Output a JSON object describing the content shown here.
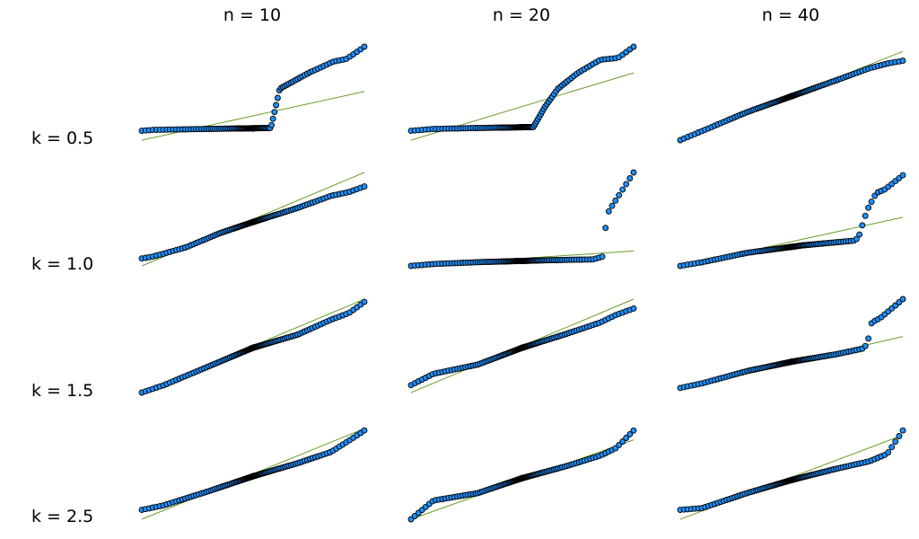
{
  "colors": {
    "points": "#1e90ff",
    "point_edge": "#000000",
    "line": "#6b9e2a",
    "background": "#ffffff"
  },
  "column_titles": [
    "n = 10",
    "n = 20",
    "n = 40"
  ],
  "row_labels": [
    "k = 0.5",
    "k = 1.0",
    "k = 1.5",
    "k = 2.5"
  ],
  "chart_data": {
    "type": "scatter",
    "layout": "grid 4 rows x 3 columns of Q-Q style panels, each with a reference line",
    "grid": false,
    "axes_visible": false,
    "panels": [
      {
        "row": 0,
        "col": 0,
        "knots": [
          [
            0,
            0.1
          ],
          [
            0.05,
            0.11
          ],
          [
            0.3,
            0.12
          ],
          [
            0.58,
            0.13
          ],
          [
            0.62,
            0.55
          ],
          [
            0.75,
            0.72
          ],
          [
            0.86,
            0.84
          ],
          [
            0.92,
            0.87
          ],
          [
            1.0,
            1.0
          ]
        ],
        "line": [
          0.0,
          0.52
        ]
      },
      {
        "row": 0,
        "col": 1,
        "knots": [
          [
            0,
            0.1
          ],
          [
            0.1,
            0.12
          ],
          [
            0.3,
            0.13
          ],
          [
            0.55,
            0.14
          ],
          [
            0.6,
            0.35
          ],
          [
            0.66,
            0.55
          ],
          [
            0.75,
            0.72
          ],
          [
            0.85,
            0.86
          ],
          [
            0.93,
            0.88
          ],
          [
            1.0,
            1.0
          ]
        ],
        "line": [
          0.0,
          0.72
        ]
      },
      {
        "row": 0,
        "col": 2,
        "knots": [
          [
            0,
            0.0
          ],
          [
            0.1,
            0.1
          ],
          [
            0.3,
            0.3
          ],
          [
            0.5,
            0.47
          ],
          [
            0.7,
            0.64
          ],
          [
            0.85,
            0.77
          ],
          [
            0.93,
            0.82
          ],
          [
            1.0,
            0.85
          ]
        ],
        "line": [
          0.0,
          0.95
        ]
      },
      {
        "row": 1,
        "col": 0,
        "knots": [
          [
            0,
            0.08
          ],
          [
            0.05,
            0.1
          ],
          [
            0.2,
            0.2
          ],
          [
            0.35,
            0.35
          ],
          [
            0.5,
            0.47
          ],
          [
            0.7,
            0.62
          ],
          [
            0.85,
            0.75
          ],
          [
            0.93,
            0.79
          ],
          [
            1.0,
            0.85
          ]
        ],
        "line": [
          0.0,
          1.0
        ]
      },
      {
        "row": 1,
        "col": 1,
        "knots": [
          [
            0,
            0.0
          ],
          [
            0.1,
            0.02
          ],
          [
            0.3,
            0.04
          ],
          [
            0.6,
            0.06
          ],
          [
            0.82,
            0.07
          ],
          [
            0.86,
            0.1
          ],
          [
            0.88,
            0.55
          ],
          [
            0.9,
            0.63
          ],
          [
            1.0,
            1.0
          ]
        ],
        "line": [
          0.0,
          0.16
        ]
      },
      {
        "row": 1,
        "col": 2,
        "knots": [
          [
            0,
            0.0
          ],
          [
            0.1,
            0.04
          ],
          [
            0.3,
            0.14
          ],
          [
            0.55,
            0.22
          ],
          [
            0.78,
            0.27
          ],
          [
            0.8,
            0.3
          ],
          [
            0.82,
            0.45
          ],
          [
            0.84,
            0.6
          ],
          [
            0.88,
            0.78
          ],
          [
            0.92,
            0.82
          ],
          [
            1.0,
            0.97
          ]
        ],
        "line": [
          0.0,
          0.52
        ]
      },
      {
        "row": 2,
        "col": 0,
        "knots": [
          [
            0,
            0.0
          ],
          [
            0.1,
            0.08
          ],
          [
            0.3,
            0.28
          ],
          [
            0.5,
            0.48
          ],
          [
            0.7,
            0.62
          ],
          [
            0.85,
            0.78
          ],
          [
            0.93,
            0.85
          ],
          [
            1.0,
            0.97
          ]
        ],
        "line": [
          0.0,
          1.0
        ]
      },
      {
        "row": 2,
        "col": 1,
        "knots": [
          [
            0,
            0.08
          ],
          [
            0.1,
            0.2
          ],
          [
            0.3,
            0.3
          ],
          [
            0.5,
            0.48
          ],
          [
            0.7,
            0.63
          ],
          [
            0.85,
            0.75
          ],
          [
            0.92,
            0.83
          ],
          [
            1.0,
            0.9
          ]
        ],
        "line": [
          0.0,
          1.0
        ]
      },
      {
        "row": 2,
        "col": 2,
        "knots": [
          [
            0,
            0.05
          ],
          [
            0.1,
            0.1
          ],
          [
            0.3,
            0.23
          ],
          [
            0.5,
            0.33
          ],
          [
            0.7,
            0.41
          ],
          [
            0.82,
            0.47
          ],
          [
            0.84,
            0.52
          ],
          [
            0.86,
            0.75
          ],
          [
            0.9,
            0.8
          ],
          [
            1.0,
            1.0
          ]
        ],
        "line": [
          0.05,
          0.6
        ]
      },
      {
        "row": 3,
        "col": 0,
        "knots": [
          [
            0,
            0.1
          ],
          [
            0.1,
            0.15
          ],
          [
            0.3,
            0.3
          ],
          [
            0.5,
            0.46
          ],
          [
            0.7,
            0.6
          ],
          [
            0.85,
            0.72
          ],
          [
            0.93,
            0.84
          ],
          [
            1.0,
            0.95
          ]
        ],
        "line": [
          0.0,
          0.97
        ]
      },
      {
        "row": 3,
        "col": 1,
        "knots": [
          [
            0,
            0.0
          ],
          [
            0.1,
            0.2
          ],
          [
            0.3,
            0.28
          ],
          [
            0.5,
            0.44
          ],
          [
            0.7,
            0.57
          ],
          [
            0.85,
            0.68
          ],
          [
            0.92,
            0.76
          ],
          [
            1.0,
            0.95
          ]
        ],
        "line": [
          0.0,
          0.85
        ]
      },
      {
        "row": 3,
        "col": 2,
        "knots": [
          [
            0,
            0.1
          ],
          [
            0.1,
            0.12
          ],
          [
            0.3,
            0.28
          ],
          [
            0.5,
            0.42
          ],
          [
            0.7,
            0.54
          ],
          [
            0.85,
            0.62
          ],
          [
            0.93,
            0.7
          ],
          [
            1.0,
            0.95
          ]
        ],
        "line": [
          0.0,
          0.9
        ]
      }
    ]
  }
}
